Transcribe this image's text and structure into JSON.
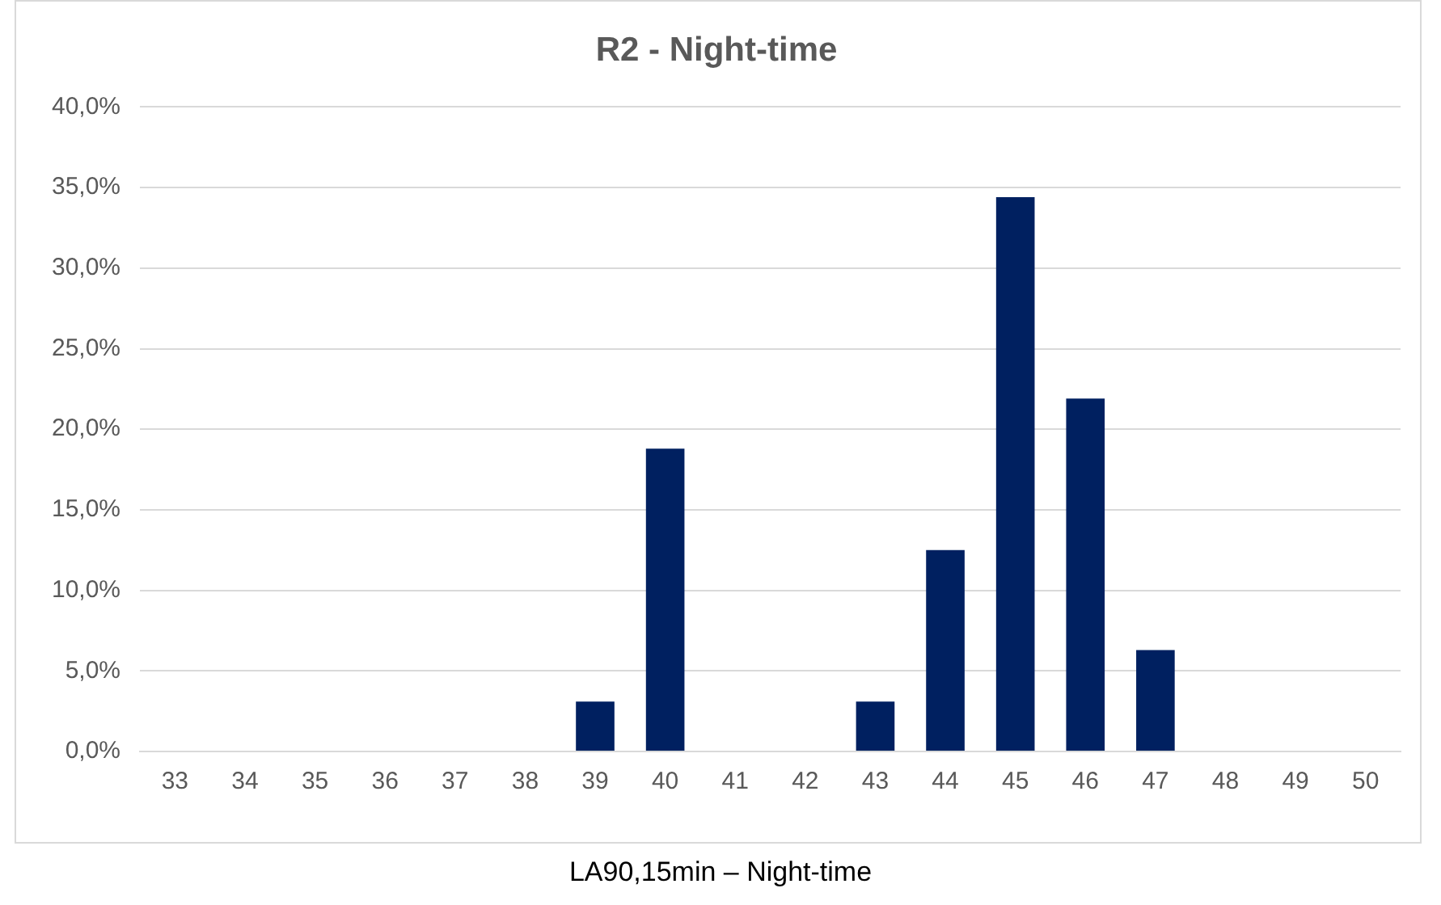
{
  "chart_data": {
    "type": "bar",
    "title": "R2 - Night-time",
    "xlabel": "LA90,15min – Night-time",
    "categories": [
      "33",
      "34",
      "35",
      "36",
      "37",
      "38",
      "39",
      "40",
      "41",
      "42",
      "43",
      "44",
      "45",
      "46",
      "47",
      "48",
      "49",
      "50"
    ],
    "values": [
      0,
      0,
      0,
      0,
      0,
      0,
      3.1,
      18.8,
      0,
      0,
      3.1,
      12.5,
      34.4,
      21.9,
      6.3,
      0,
      0,
      0
    ],
    "color": "#002060",
    "ylim": [
      0,
      40
    ],
    "yticks": [
      {
        "value": 0,
        "label": "0,0%"
      },
      {
        "value": 5,
        "label": "5,0%"
      },
      {
        "value": 10,
        "label": "10,0%"
      },
      {
        "value": 15,
        "label": "15,0%"
      },
      {
        "value": 20,
        "label": "20,0%"
      },
      {
        "value": 25,
        "label": "25,0%"
      },
      {
        "value": 30,
        "label": "30,0%"
      },
      {
        "value": 35,
        "label": "35,0%"
      },
      {
        "value": 40,
        "label": "40,0%"
      }
    ],
    "grid": "y",
    "legend": false
  }
}
